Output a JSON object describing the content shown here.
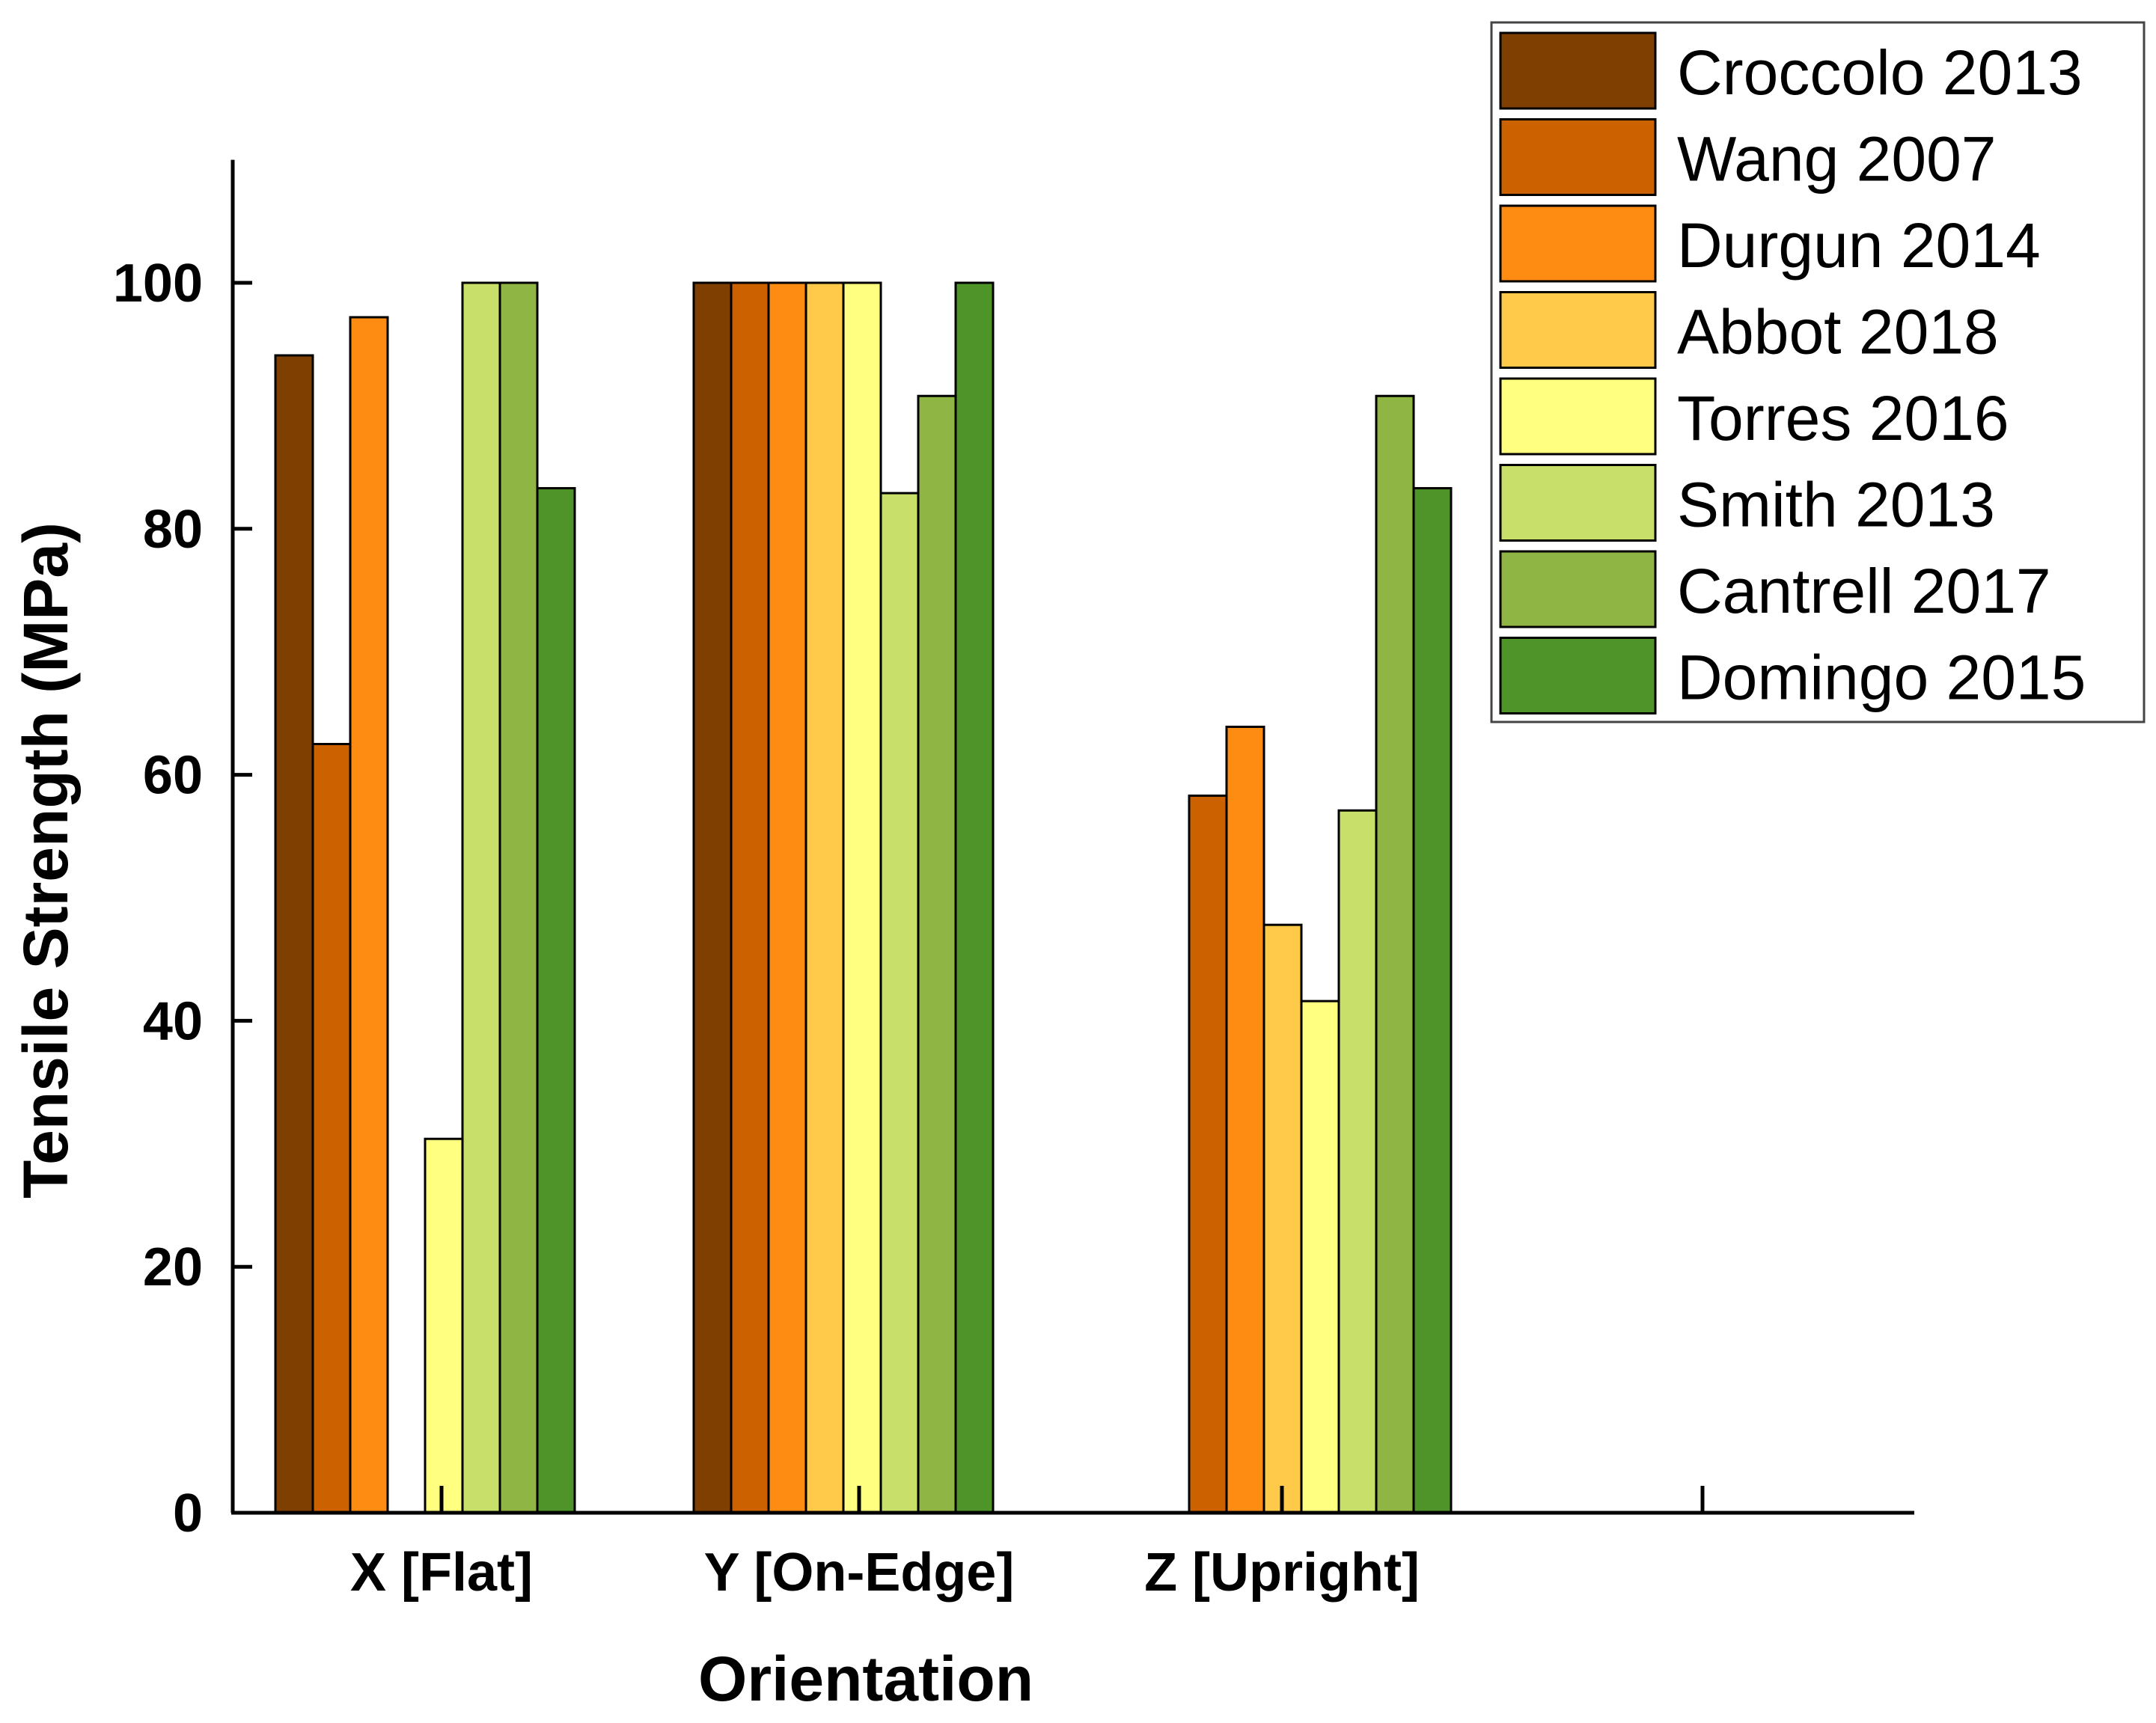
{
  "chart_data": {
    "type": "bar",
    "title": "",
    "xlabel": "Orientation",
    "ylabel": "Tensile Strength (MPa)",
    "ylim": [
      0,
      110
    ],
    "yticks": [
      0,
      20,
      40,
      60,
      80,
      100
    ],
    "categories": [
      "X [Flat]",
      "Y [On-Edge]",
      "Z [Upright]"
    ],
    "legend_position": "top-right",
    "grid": false,
    "series": [
      {
        "name": "Croccolo 2013",
        "color": "#7F3F00",
        "values": [
          94.1,
          100,
          null
        ]
      },
      {
        "name": "Wang 2007",
        "color": "#CC6100",
        "values": [
          62.5,
          100,
          58.3
        ]
      },
      {
        "name": "Durgun 2014",
        "color": "#FF8C12",
        "values": [
          97.2,
          100,
          63.9
        ]
      },
      {
        "name": "Abbot 2018",
        "color": "#FFC94A",
        "values": [
          null,
          100,
          47.8
        ]
      },
      {
        "name": "Torres 2016",
        "color": "#FFFF80",
        "values": [
          30.4,
          100,
          41.6
        ]
      },
      {
        "name": "Smith 2013",
        "color": "#C8DF6A",
        "values": [
          100,
          82.9,
          57.1
        ]
      },
      {
        "name": "Cantrell 2017",
        "color": "#8FB545",
        "values": [
          100,
          90.8,
          90.8
        ]
      },
      {
        "name": "Domingo 2015",
        "color": "#4E9429",
        "values": [
          83.3,
          100,
          83.3
        ]
      }
    ]
  }
}
